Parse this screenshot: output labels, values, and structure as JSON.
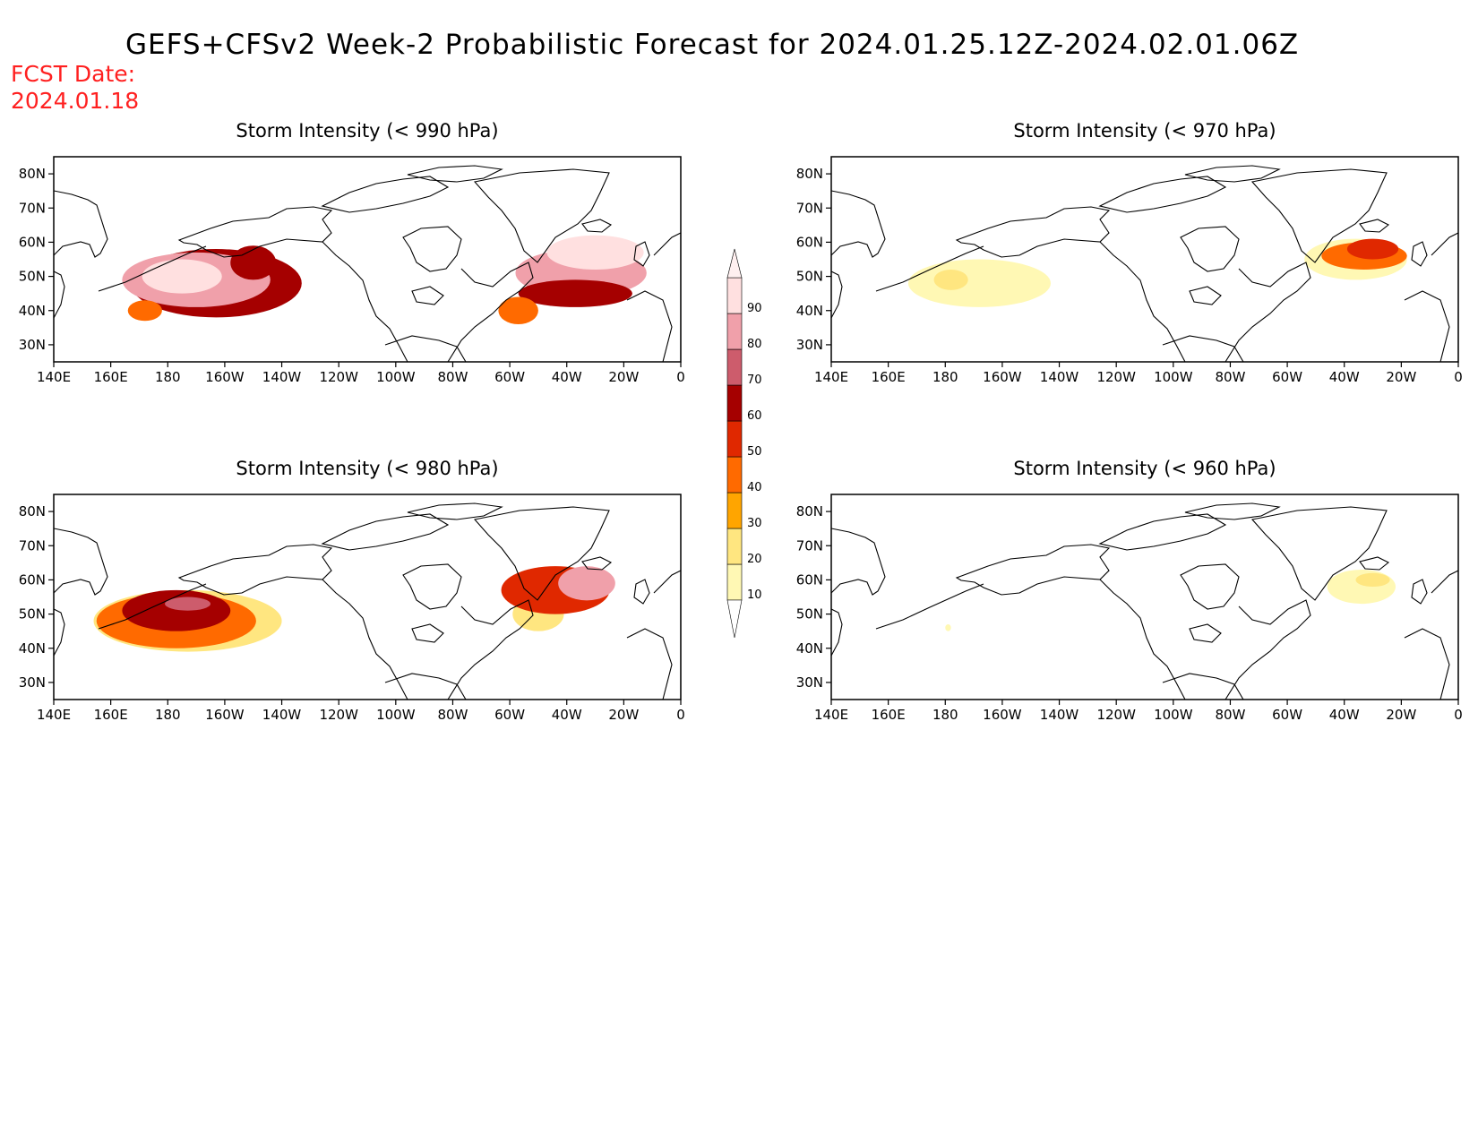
{
  "title": "GEFS+CFSv2 Week-2 Probabilistic Forecast for 2024.01.25.12Z-2024.02.01.06Z",
  "fcst_label": "FCST Date:",
  "fcst_date": "2024.01.18",
  "colorbar": {
    "levels": [
      10,
      20,
      30,
      40,
      50,
      60,
      70,
      80,
      90
    ],
    "colors": [
      "#fff8b4",
      "#ffe680",
      "#ffa500",
      "#ff6a00",
      "#e02800",
      "#a50000",
      "#cd5c6c",
      "#f0a0aa",
      "#ffe0e0"
    ]
  },
  "axes": {
    "lat_ticks": [
      "80N",
      "70N",
      "60N",
      "50N",
      "40N",
      "30N"
    ],
    "lon_ticks": [
      "140E",
      "160E",
      "180",
      "160W",
      "140W",
      "120W",
      "100W",
      "80W",
      "60W",
      "40W",
      "20W",
      "0"
    ],
    "lon_range_deg": [
      140,
      360
    ],
    "lat_range_deg": [
      25,
      85
    ]
  },
  "panels": [
    {
      "title": "Storm Intensity (< 990 hPa)",
      "blobs": [
        {
          "lon": 197,
          "lat": 48,
          "rx": 30,
          "ry": 10,
          "level": 60
        },
        {
          "lon": 190,
          "lat": 49,
          "rx": 26,
          "ry": 8,
          "level": 80
        },
        {
          "lon": 185,
          "lat": 50,
          "rx": 14,
          "ry": 5,
          "level": 90
        },
        {
          "lon": 210,
          "lat": 54,
          "rx": 8,
          "ry": 5,
          "level": 60
        },
        {
          "lon": 172,
          "lat": 40,
          "rx": 6,
          "ry": 3,
          "level": 40
        },
        {
          "lon": 325,
          "lat": 51,
          "rx": 23,
          "ry": 7,
          "level": 80
        },
        {
          "lon": 323,
          "lat": 45,
          "rx": 20,
          "ry": 4,
          "level": 60
        },
        {
          "lon": 303,
          "lat": 40,
          "rx": 7,
          "ry": 4,
          "level": 40
        },
        {
          "lon": 330,
          "lat": 57,
          "rx": 17,
          "ry": 5,
          "level": 90
        }
      ]
    },
    {
      "title": "Storm Intensity (< 970 hPa)",
      "blobs": [
        {
          "lon": 192,
          "lat": 48,
          "rx": 25,
          "ry": 7,
          "level": 10
        },
        {
          "lon": 182,
          "lat": 49,
          "rx": 6,
          "ry": 3,
          "level": 20
        },
        {
          "lon": 324,
          "lat": 55,
          "rx": 18,
          "ry": 6,
          "level": 10
        },
        {
          "lon": 327,
          "lat": 56,
          "rx": 15,
          "ry": 4,
          "level": 40
        },
        {
          "lon": 330,
          "lat": 58,
          "rx": 9,
          "ry": 3,
          "level": 50
        }
      ]
    },
    {
      "title": "Storm Intensity (< 980 hPa)",
      "blobs": [
        {
          "lon": 187,
          "lat": 48,
          "rx": 33,
          "ry": 9,
          "level": 20
        },
        {
          "lon": 183,
          "lat": 48,
          "rx": 28,
          "ry": 8,
          "level": 40
        },
        {
          "lon": 183,
          "lat": 51,
          "rx": 19,
          "ry": 6,
          "level": 60
        },
        {
          "lon": 187,
          "lat": 53,
          "rx": 8,
          "ry": 2,
          "level": 70
        },
        {
          "lon": 310,
          "lat": 50,
          "rx": 9,
          "ry": 5,
          "level": 20
        },
        {
          "lon": 316,
          "lat": 57,
          "rx": 19,
          "ry": 7,
          "level": 50
        },
        {
          "lon": 327,
          "lat": 59,
          "rx": 10,
          "ry": 5,
          "level": 80
        }
      ]
    },
    {
      "title": "Storm Intensity (< 960 hPa)",
      "blobs": [
        {
          "lon": 326,
          "lat": 58,
          "rx": 12,
          "ry": 5,
          "level": 10
        },
        {
          "lon": 330,
          "lat": 60,
          "rx": 6,
          "ry": 2,
          "level": 20
        },
        {
          "lon": 181,
          "lat": 46,
          "rx": 1,
          "ry": 1,
          "level": 10
        }
      ]
    }
  ]
}
